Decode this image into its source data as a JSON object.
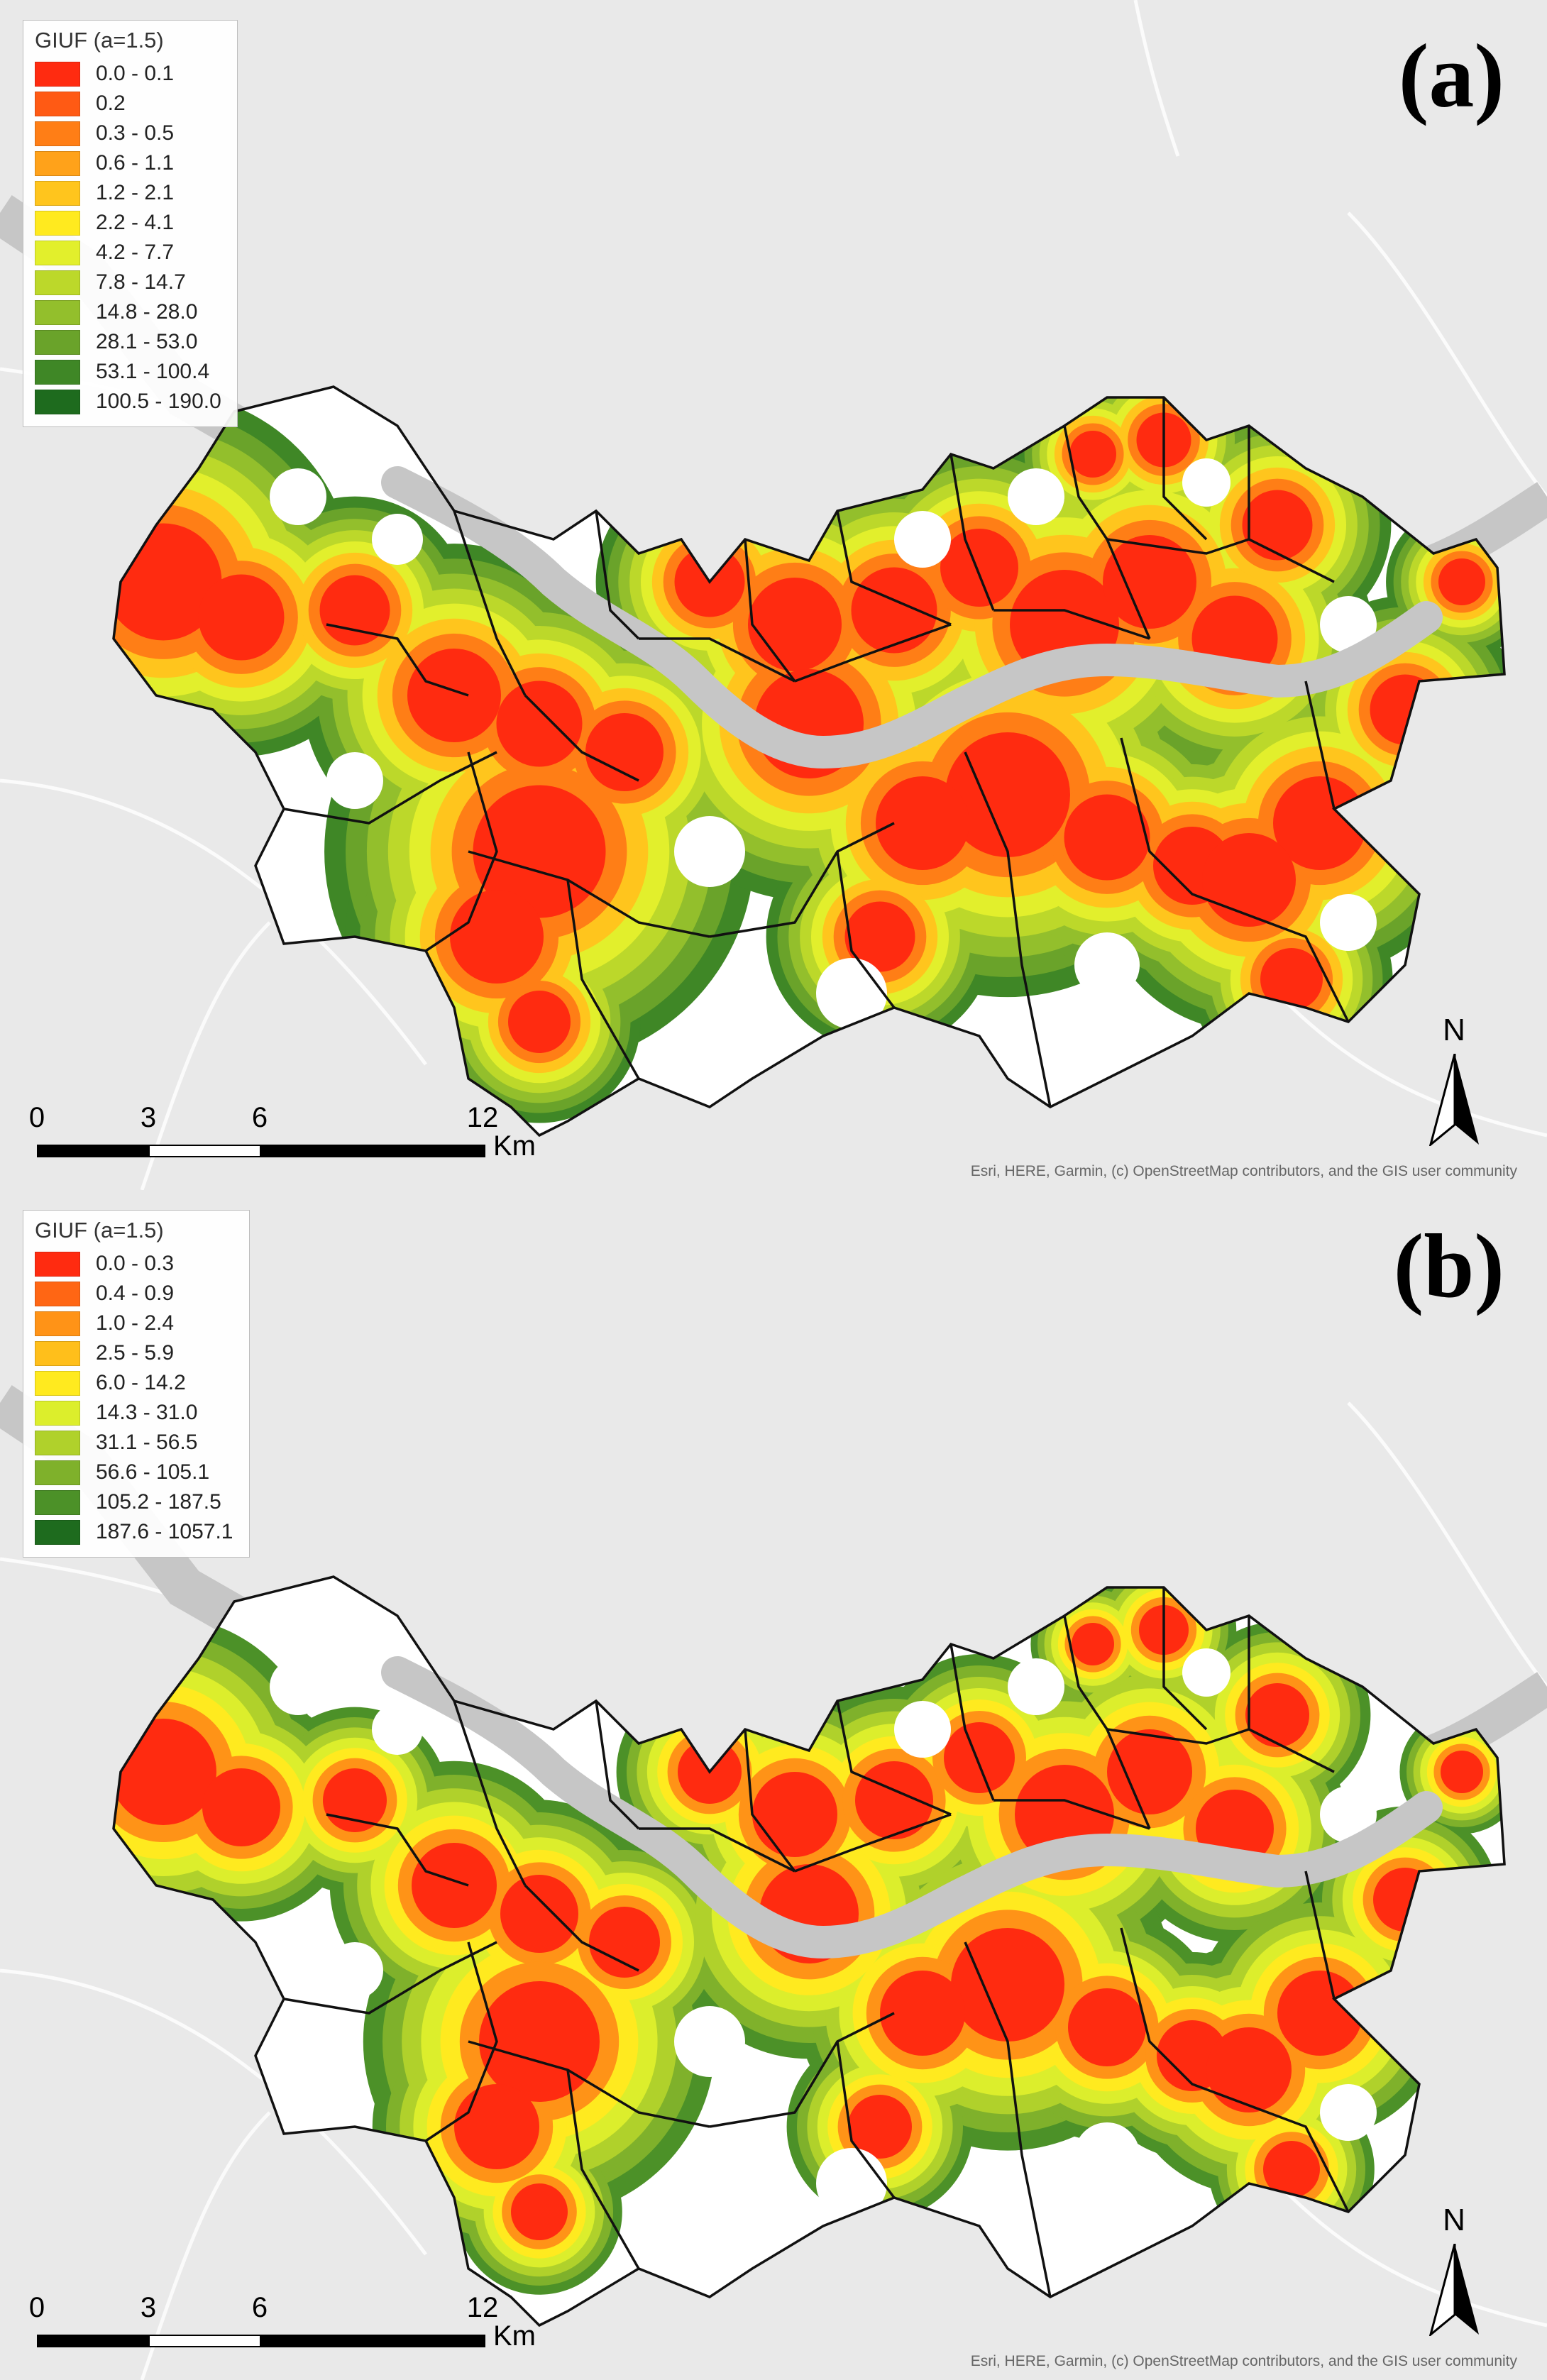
{
  "panels": [
    {
      "label": "(a)",
      "legend": {
        "title": "GIUF (a=1.5)",
        "items": [
          {
            "label": "0.0 - 0.1",
            "color": "#ff2b10"
          },
          {
            "label": "0.2",
            "color": "#ff5a14"
          },
          {
            "label": "0.3 - 0.5",
            "color": "#ff7e16"
          },
          {
            "label": "0.6 - 1.1",
            "color": "#ffa21a"
          },
          {
            "label": "1.2 - 2.1",
            "color": "#ffc51d"
          },
          {
            "label": "2.2 - 4.1",
            "color": "#ffea1f"
          },
          {
            "label": "4.2 - 7.7",
            "color": "#e2ef2c"
          },
          {
            "label": "7.8 - 14.7",
            "color": "#bcd82a"
          },
          {
            "label": "14.8 - 28.0",
            "color": "#93bf2c"
          },
          {
            "label": "28.1 - 53.0",
            "color": "#6aa32a"
          },
          {
            "label": "53.1 - 100.4",
            "color": "#3f8726"
          },
          {
            "label": "100.5 - 190.0",
            "color": "#1e6b1e"
          }
        ]
      },
      "scale": {
        "ticks": [
          "0",
          "3",
          "6",
          "12"
        ],
        "unit": "Km"
      },
      "north": "N",
      "attribution": "Esri, HERE, Garmin, (c) OpenStreetMap contributors, and the GIS user community"
    },
    {
      "label": "(b)",
      "legend": {
        "title": "GIUF (a=1.5)",
        "items": [
          {
            "label": "0.0 - 0.3",
            "color": "#ff2b10"
          },
          {
            "label": "0.4 - 0.9",
            "color": "#ff6614"
          },
          {
            "label": "1.0 - 2.4",
            "color": "#ff9317"
          },
          {
            "label": "2.5 - 5.9",
            "color": "#ffbf1b"
          },
          {
            "label": "6.0 - 14.2",
            "color": "#ffea1f"
          },
          {
            "label": "14.3 - 31.0",
            "color": "#dcee2c"
          },
          {
            "label": "31.1 - 56.5",
            "color": "#b0d12b"
          },
          {
            "label": "56.6 - 105.1",
            "color": "#7fb12b"
          },
          {
            "label": "105.2 - 187.5",
            "color": "#4c9128"
          },
          {
            "label": "187.6 - 1057.1",
            "color": "#1e6b1e"
          }
        ]
      },
      "scale": {
        "ticks": [
          "0",
          "3",
          "6",
          "12"
        ],
        "unit": "Km"
      },
      "north": "N",
      "attribution": "Esri, HERE, Garmin, (c) OpenStreetMap contributors, and the GIS user community"
    }
  ],
  "colors": {
    "background": "#e9e9e9",
    "river": "#c6c6c6",
    "blank": "#ffffff",
    "boundary": "#111111"
  }
}
